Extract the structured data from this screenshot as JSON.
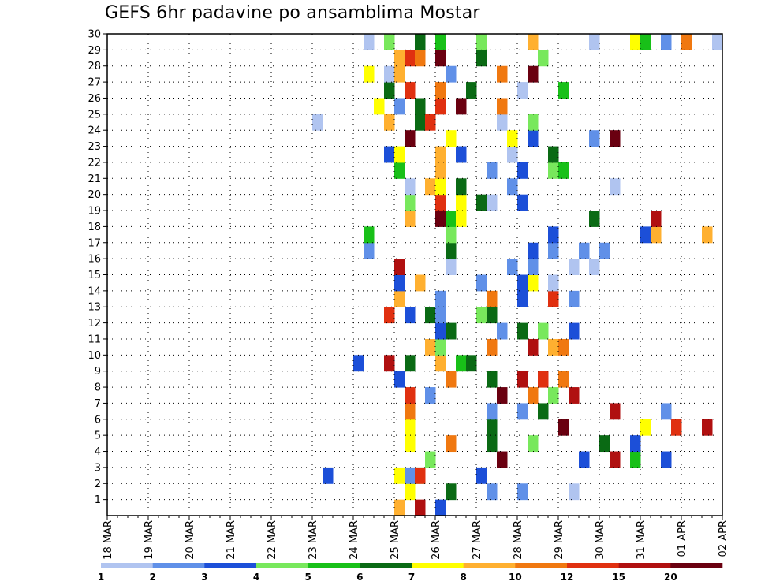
{
  "chart_data": {
    "type": "heatmap",
    "title": "GEFS 6hr padavine po ansamblima Mostar",
    "x_ticks": [
      "18 MAR",
      "19 MAR",
      "20 MAR",
      "21 MAR",
      "22 MAR",
      "23 MAR",
      "24 MAR",
      "25 MAR",
      "26 MAR",
      "27 MAR",
      "28 MAR",
      "29 MAR",
      "30 MAR",
      "31 MAR",
      "01 APR",
      "02 APR"
    ],
    "x_range_days": [
      0,
      15
    ],
    "y_ticks": [
      "1",
      "2",
      "3",
      "4",
      "5",
      "6",
      "7",
      "8",
      "9",
      "10",
      "11",
      "12",
      "13",
      "14",
      "15",
      "16",
      "17",
      "18",
      "19",
      "20",
      "21",
      "22",
      "23",
      "24",
      "25",
      "26",
      "27",
      "28",
      "29",
      "30"
    ],
    "y_range": [
      0,
      30
    ],
    "grid": true,
    "step_hours": 6,
    "colorbar": {
      "labels": [
        "1",
        "2",
        "3",
        "4",
        "5",
        "6",
        "7",
        "8",
        "10",
        "12",
        "15",
        "20"
      ],
      "colors": [
        "#b0c4f0",
        "#6090e8",
        "#1c4fd8",
        "#78e85c",
        "#18c018",
        "#0a6a14",
        "#ffff00",
        "#ffb030",
        "#f07810",
        "#e03010",
        "#b01010",
        "#6a0010"
      ]
    },
    "cells": [
      [
        25.0,
        0,
        7
      ],
      [
        25.5,
        0,
        10
      ],
      [
        26.0,
        0,
        2
      ],
      [
        25.25,
        1,
        6
      ],
      [
        26.25,
        1,
        5
      ],
      [
        27.25,
        1,
        1
      ],
      [
        28.0,
        1,
        1
      ],
      [
        29.25,
        1,
        0
      ],
      [
        23.25,
        2,
        2
      ],
      [
        25.0,
        2,
        6
      ],
      [
        25.25,
        2,
        1
      ],
      [
        25.5,
        2,
        3
      ],
      [
        27.0,
        2,
        2
      ],
      [
        25.5,
        2,
        9
      ],
      [
        25.75,
        3,
        3
      ],
      [
        27.5,
        3,
        11
      ],
      [
        29.5,
        3,
        2
      ],
      [
        30.25,
        3,
        10
      ],
      [
        30.75,
        3,
        4
      ],
      [
        31.5,
        3,
        2
      ],
      [
        25.25,
        4,
        6
      ],
      [
        26.25,
        4,
        8
      ],
      [
        27.25,
        4,
        5
      ],
      [
        28.25,
        4,
        3
      ],
      [
        30.0,
        4,
        5
      ],
      [
        30.75,
        4,
        2
      ],
      [
        25.25,
        5,
        6
      ],
      [
        27.25,
        5,
        5
      ],
      [
        29.0,
        5,
        11
      ],
      [
        31.0,
        5,
        6
      ],
      [
        31.75,
        5,
        9
      ],
      [
        32.5,
        5,
        10
      ],
      [
        25.25,
        6,
        8
      ],
      [
        27.25,
        6,
        1
      ],
      [
        28.0,
        6,
        1
      ],
      [
        28.5,
        6,
        5
      ],
      [
        30.25,
        6,
        10
      ],
      [
        31.5,
        6,
        1
      ],
      [
        25.25,
        7,
        9
      ],
      [
        25.75,
        7,
        1
      ],
      [
        27.5,
        7,
        11
      ],
      [
        28.25,
        7,
        8
      ],
      [
        28.75,
        7,
        3
      ],
      [
        29.25,
        7,
        10
      ],
      [
        25.0,
        8,
        2
      ],
      [
        26.25,
        8,
        8
      ],
      [
        27.25,
        8,
        5
      ],
      [
        28.0,
        8,
        10
      ],
      [
        28.5,
        8,
        9
      ],
      [
        29.0,
        8,
        8
      ],
      [
        24.0,
        9,
        2
      ],
      [
        24.75,
        9,
        10
      ],
      [
        25.25,
        9,
        5
      ],
      [
        26.0,
        9,
        7
      ],
      [
        26.5,
        9,
        4
      ],
      [
        26.75,
        9,
        5
      ],
      [
        25.75,
        10,
        7
      ],
      [
        26.0,
        10,
        3
      ],
      [
        27.25,
        10,
        8
      ],
      [
        28.25,
        10,
        10
      ],
      [
        28.75,
        10,
        7
      ],
      [
        29.0,
        10,
        8
      ],
      [
        26.0,
        11,
        2
      ],
      [
        26.25,
        11,
        5
      ],
      [
        27.5,
        11,
        1
      ],
      [
        28.0,
        11,
        5
      ],
      [
        28.5,
        11,
        3
      ],
      [
        29.25,
        11,
        2
      ],
      [
        24.75,
        12,
        9
      ],
      [
        25.25,
        12,
        2
      ],
      [
        25.75,
        12,
        5
      ],
      [
        26.0,
        12,
        1
      ],
      [
        27.0,
        12,
        3
      ],
      [
        27.25,
        12,
        5
      ],
      [
        25.0,
        13,
        7
      ],
      [
        26.0,
        13,
        1
      ],
      [
        27.25,
        13,
        8
      ],
      [
        28.0,
        13,
        2
      ],
      [
        28.75,
        13,
        9
      ],
      [
        29.25,
        13,
        1
      ],
      [
        25.0,
        14,
        2
      ],
      [
        25.5,
        14,
        7
      ],
      [
        27.0,
        14,
        1
      ],
      [
        28.0,
        14,
        2
      ],
      [
        28.25,
        14,
        6
      ],
      [
        28.75,
        14,
        0
      ],
      [
        25.0,
        15,
        10
      ],
      [
        26.25,
        15,
        0
      ],
      [
        27.75,
        15,
        1
      ],
      [
        28.25,
        15,
        1
      ],
      [
        29.25,
        15,
        0
      ],
      [
        29.75,
        15,
        0
      ],
      [
        24.25,
        16,
        1
      ],
      [
        26.25,
        16,
        5
      ],
      [
        28.25,
        16,
        2
      ],
      [
        28.75,
        16,
        1
      ],
      [
        29.5,
        16,
        1
      ],
      [
        30.0,
        16,
        1
      ],
      [
        24.25,
        17,
        4
      ],
      [
        26.25,
        17,
        3
      ],
      [
        28.75,
        17,
        2
      ],
      [
        31.0,
        17,
        2
      ],
      [
        31.25,
        17,
        7
      ],
      [
        32.5,
        17,
        7
      ],
      [
        25.25,
        18,
        7
      ],
      [
        26.0,
        18,
        11
      ],
      [
        26.25,
        18,
        4
      ],
      [
        26.5,
        18,
        6
      ],
      [
        29.75,
        18,
        5
      ],
      [
        31.25,
        18,
        10
      ],
      [
        25.25,
        19,
        3
      ],
      [
        26.0,
        19,
        9
      ],
      [
        26.5,
        19,
        6
      ],
      [
        27.0,
        19,
        5
      ],
      [
        27.25,
        19,
        0
      ],
      [
        28.0,
        19,
        2
      ],
      [
        25.25,
        20,
        0
      ],
      [
        25.75,
        20,
        7
      ],
      [
        26.0,
        20,
        6
      ],
      [
        26.5,
        20,
        5
      ],
      [
        27.75,
        20,
        1
      ],
      [
        30.25,
        20,
        0
      ],
      [
        25.0,
        21,
        4
      ],
      [
        26.0,
        21,
        7
      ],
      [
        27.25,
        21,
        1
      ],
      [
        28.0,
        21,
        2
      ],
      [
        28.75,
        21,
        3
      ],
      [
        29.0,
        21,
        4
      ],
      [
        24.75,
        22,
        2
      ],
      [
        25.0,
        22,
        6
      ],
      [
        26.0,
        22,
        7
      ],
      [
        26.5,
        22,
        2
      ],
      [
        27.75,
        22,
        0
      ],
      [
        28.75,
        22,
        5
      ],
      [
        25.25,
        23,
        11
      ],
      [
        26.25,
        23,
        6
      ],
      [
        27.75,
        23,
        6
      ],
      [
        28.25,
        23,
        2
      ],
      [
        29.75,
        23,
        1
      ],
      [
        30.25,
        23,
        11
      ],
      [
        23.0,
        24,
        0
      ],
      [
        24.75,
        24,
        7
      ],
      [
        25.5,
        24,
        5
      ],
      [
        25.75,
        24,
        9
      ],
      [
        27.5,
        24,
        0
      ],
      [
        28.25,
        24,
        3
      ],
      [
        24.5,
        25,
        6
      ],
      [
        25.0,
        25,
        1
      ],
      [
        25.5,
        25,
        5
      ],
      [
        26.0,
        25,
        9
      ],
      [
        26.5,
        25,
        11
      ],
      [
        27.5,
        25,
        8
      ],
      [
        24.75,
        26,
        5
      ],
      [
        25.25,
        26,
        9
      ],
      [
        26.0,
        26,
        8
      ],
      [
        26.75,
        26,
        5
      ],
      [
        28.0,
        26,
        0
      ],
      [
        29.0,
        26,
        4
      ],
      [
        24.25,
        27,
        6
      ],
      [
        24.75,
        27,
        0
      ],
      [
        25.0,
        27,
        7
      ],
      [
        26.25,
        27,
        1
      ],
      [
        27.5,
        27,
        8
      ],
      [
        28.25,
        27,
        11
      ],
      [
        25.0,
        28,
        7
      ],
      [
        25.25,
        28,
        9
      ],
      [
        25.5,
        28,
        8
      ],
      [
        26.0,
        28,
        11
      ],
      [
        27.0,
        28,
        5
      ],
      [
        28.5,
        28,
        3
      ],
      [
        24.25,
        29,
        0
      ],
      [
        24.75,
        29,
        3
      ],
      [
        25.5,
        29,
        5
      ],
      [
        26.0,
        29,
        4
      ],
      [
        27.0,
        29,
        3
      ],
      [
        28.25,
        29,
        7
      ],
      [
        32.75,
        29,
        0
      ],
      [
        32.0,
        29,
        8
      ],
      [
        31.5,
        29,
        1
      ],
      [
        30.75,
        29,
        6
      ],
      [
        31.0,
        29,
        4
      ],
      [
        29.75,
        29,
        0
      ]
    ]
  }
}
